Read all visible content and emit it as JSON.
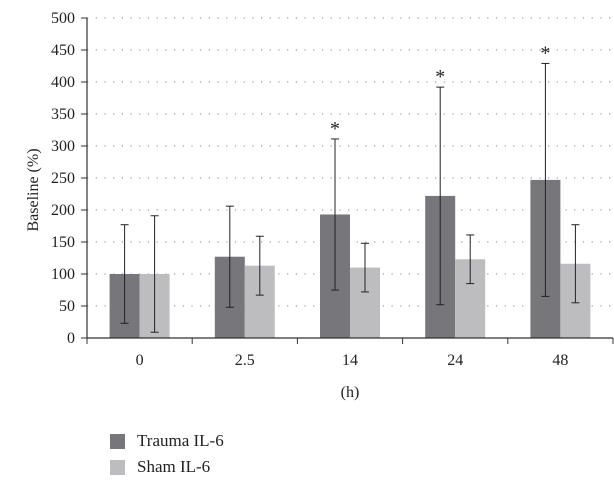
{
  "chart_data": {
    "type": "bar",
    "categories": [
      "0",
      "2.5",
      "14",
      "24",
      "48"
    ],
    "series": [
      {
        "name": "Trauma IL-6",
        "color": "#77777b",
        "values": [
          100,
          127,
          193,
          222,
          247
        ],
        "error": [
          77,
          79,
          118,
          170,
          182
        ]
      },
      {
        "name": "Sham IL-6",
        "color": "#bdbdc0",
        "values": [
          100,
          113,
          110,
          123,
          116
        ],
        "error": [
          91,
          46,
          38,
          38,
          61
        ]
      }
    ],
    "significance": [
      false,
      false,
      true,
      true,
      true
    ],
    "significance_marker": "*",
    "xlabel": "(h)",
    "ylabel": "Baseline (%)",
    "ylim": [
      0,
      500
    ],
    "yticks": [
      0,
      50,
      100,
      150,
      200,
      250,
      300,
      350,
      400,
      450,
      500
    ],
    "grid": "horizontal dotted",
    "legend_position": "bottom-left"
  }
}
